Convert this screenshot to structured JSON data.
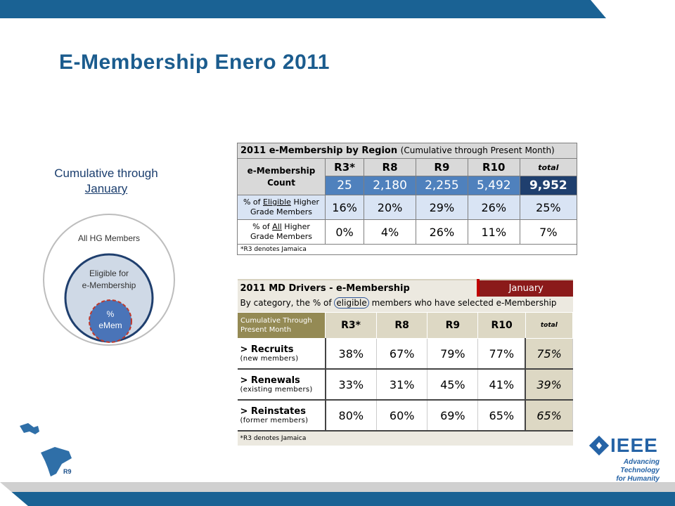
{
  "title": "E-Membership Enero 2011",
  "cumulative": {
    "line1": "Cumulative through",
    "line2": "January"
  },
  "venn": {
    "outer": "All HG Members",
    "middle_l1": "Eligible for",
    "middle_l2": "e-Membership",
    "inner_l1": "%",
    "inner_l2": "eMem"
  },
  "region_table": {
    "title": "2011 e-Membership by Region",
    "subtitle": "(Cumulative through Present Month)",
    "count_label_l1": "e-Membership",
    "count_label_l2": "Count",
    "columns": [
      "R3*",
      "R8",
      "R9",
      "R10",
      "total"
    ],
    "counts": [
      "25",
      "2,180",
      "2,255",
      "5,492",
      "9,952"
    ],
    "eligible_label_pre": "% of ",
    "eligible_label_u": "Eligible",
    "eligible_label_post": " Higher",
    "eligible_label_l2": "Grade Members",
    "eligible": [
      "16%",
      "20%",
      "29%",
      "26%",
      "25%"
    ],
    "all_label_pre": "% of ",
    "all_label_u": "All",
    "all_label_post": " Higher",
    "all_label_l2": "Grade Members",
    "all": [
      "0%",
      "4%",
      "26%",
      "11%",
      "7%"
    ],
    "note": "*R3 denotes Jamaica"
  },
  "drivers_table": {
    "title": "2011 MD Drivers - e-Membership",
    "badge": "January",
    "desc_pre": "By category, the % of ",
    "desc_mid": "eligible",
    "desc_post": " members who have selected e-Membership",
    "cum_l1": "Cumulative Through",
    "cum_l2": "Present Month",
    "columns": [
      "R3*",
      "R8",
      "R9",
      "R10",
      "total"
    ],
    "rows": [
      {
        "label": "> Recruits",
        "sub": "(new members)",
        "values": [
          "38%",
          "67%",
          "79%",
          "77%"
        ],
        "total": "75%"
      },
      {
        "label": "> Renewals",
        "sub": "(existing members)",
        "values": [
          "33%",
          "31%",
          "45%",
          "41%"
        ],
        "total": "39%"
      },
      {
        "label": "> Reinstates",
        "sub": "(former members)",
        "values": [
          "80%",
          "60%",
          "69%",
          "65%"
        ],
        "total": "65%"
      }
    ],
    "note": "*R3 denotes Jamaica"
  },
  "map_label": "R9",
  "ieee": {
    "word": "IEEE",
    "tag_l1": "Advancing Technology",
    "tag_l2": "for Humanity"
  },
  "colors": {
    "brand_blue": "#1a6294",
    "title_blue": "#1b5c8e",
    "badge_red": "#8b1a1a"
  }
}
